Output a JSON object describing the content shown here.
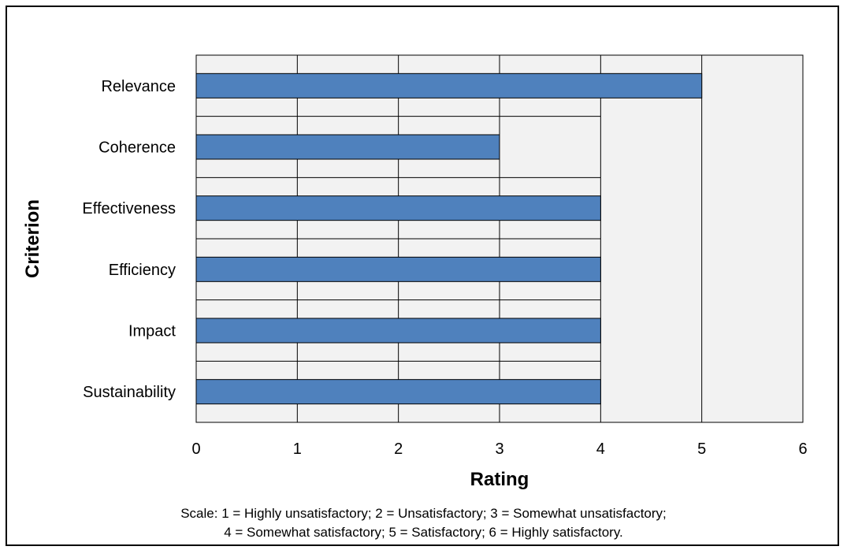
{
  "chart_data": {
    "type": "bar",
    "orientation": "horizontal",
    "categories": [
      "Relevance",
      "Coherence",
      "Effectiveness",
      "Efficiency",
      "Impact",
      "Sustainability"
    ],
    "values": [
      5,
      3,
      4,
      4,
      4,
      4
    ],
    "xlabel": "Rating",
    "ylabel": "Criterion",
    "xlim": [
      0,
      6
    ],
    "xticks": [
      "0",
      "1",
      "2",
      "3",
      "4",
      "5",
      "6"
    ],
    "grid": true,
    "legend": "none",
    "colors": {
      "bar": "#4f81bd",
      "plot_background": "#f2f2f2",
      "grid": "#000000"
    }
  },
  "notes": [
    "Scale: 1 = Highly unsatisfactory; 2 = Unsatisfactory; 3 = Somewhat unsatisfactory;",
    "4 = Somewhat satisfactory; 5 = Satisfactory; 6 = Highly satisfactory."
  ]
}
